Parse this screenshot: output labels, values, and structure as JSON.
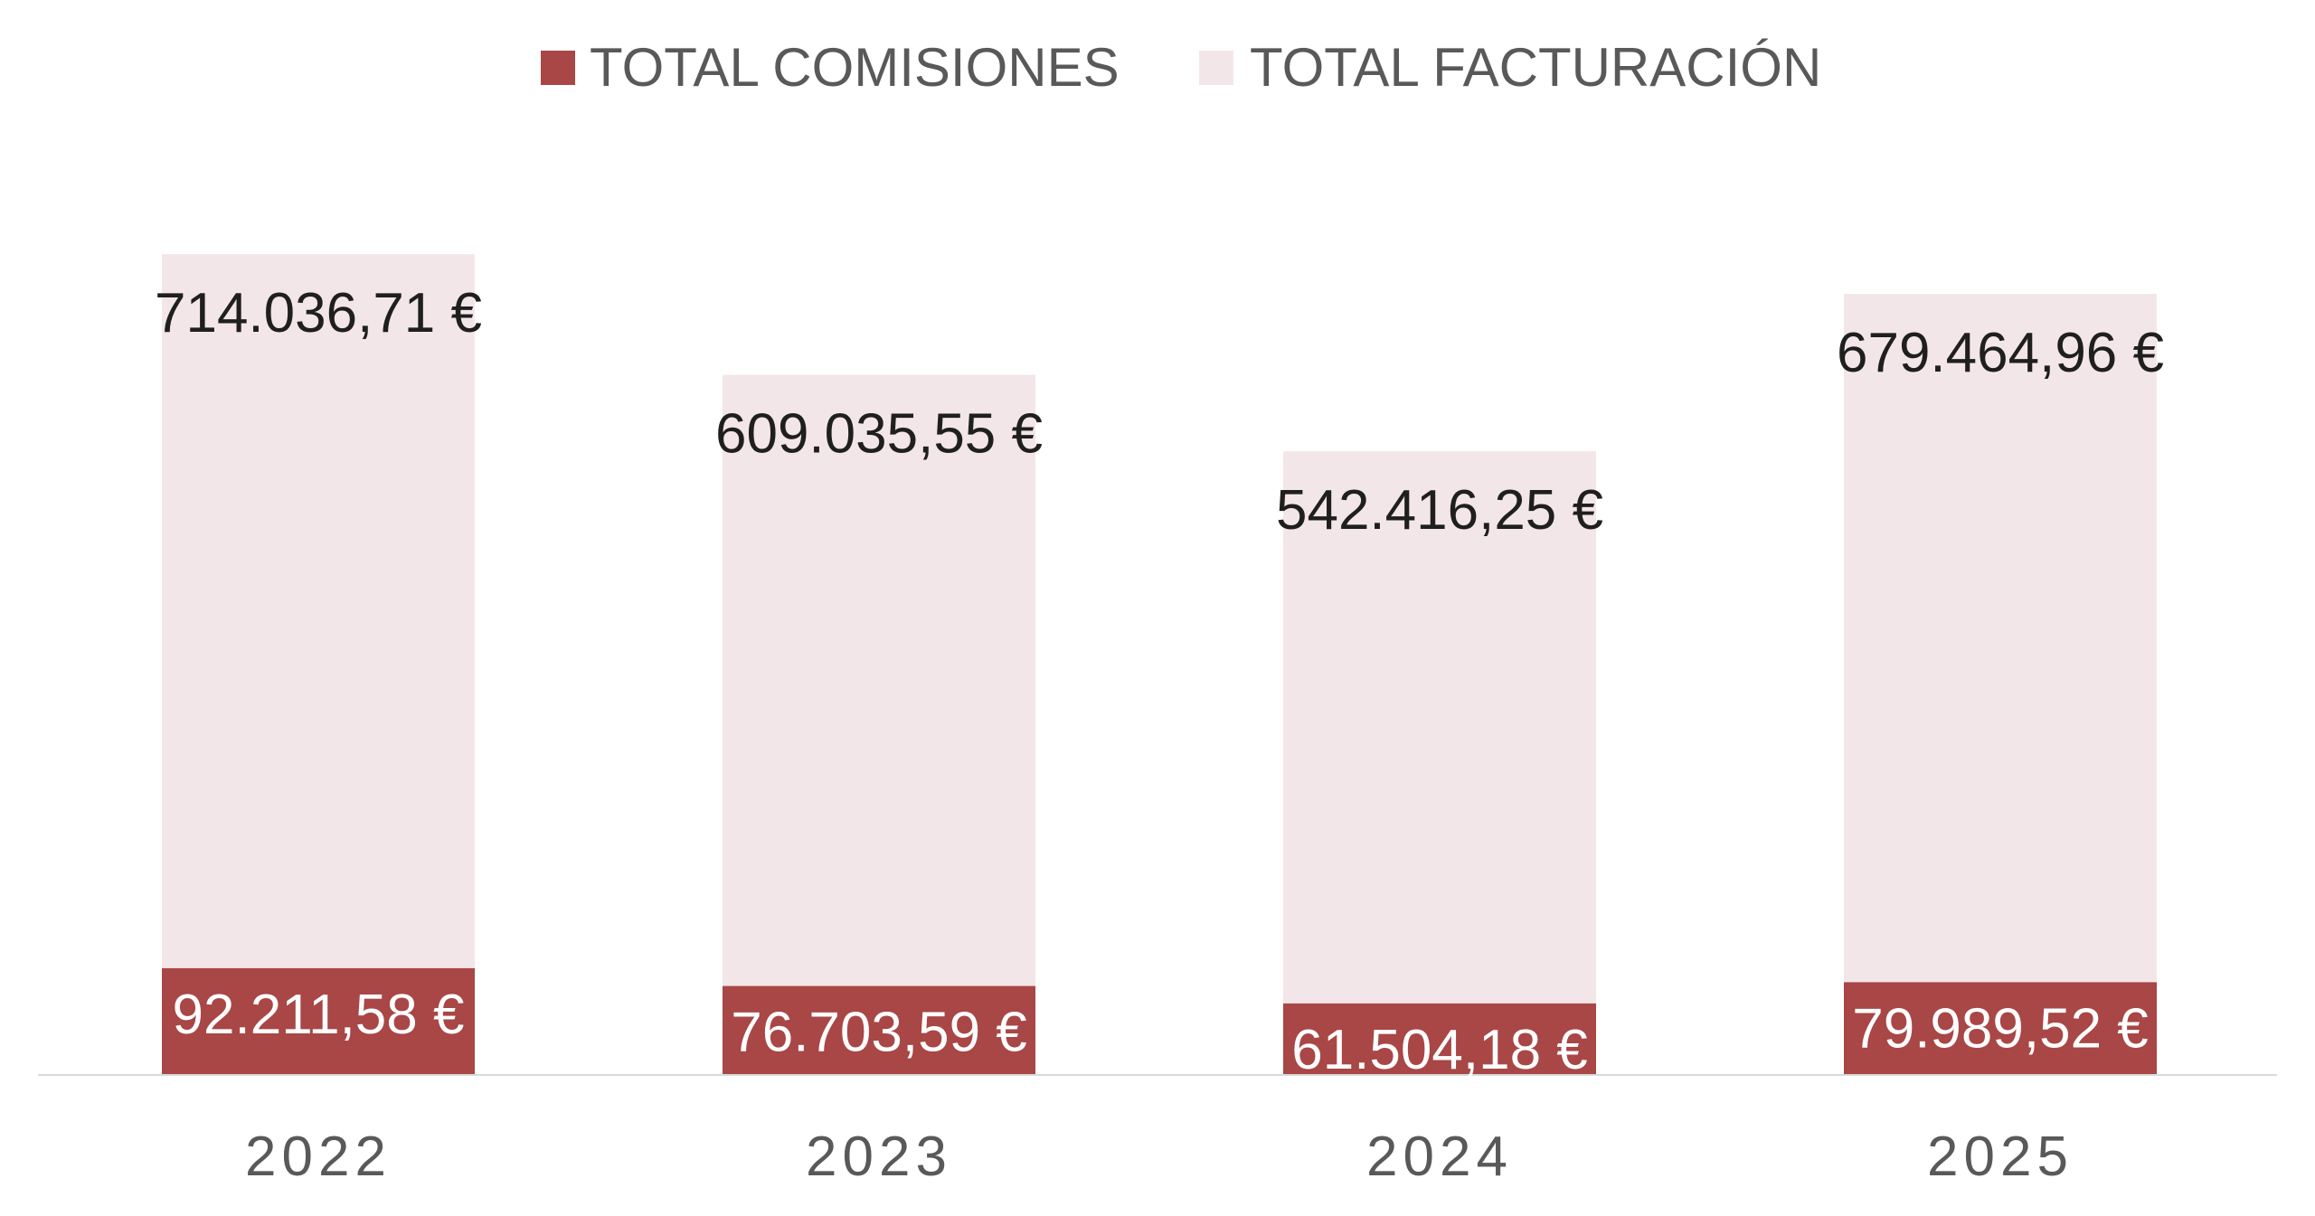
{
  "chart_data": {
    "type": "bar",
    "stacking": "overlapped",
    "categories": [
      "2022",
      "2023",
      "2024",
      "2025"
    ],
    "series": [
      {
        "name": "TOTAL COMISIONES",
        "color": "#A94646",
        "values": [
          92211.58,
          76703.59,
          61504.18,
          79989.52
        ],
        "labels": [
          "92.211,58 €",
          "76.703,59 €",
          "61.504,18 €",
          "79.989,52 €"
        ]
      },
      {
        "name": "TOTAL FACTURACIÓN",
        "color": "#F3E6E9",
        "values": [
          714036.71,
          609035.55,
          542416.25,
          679464.96
        ],
        "labels": [
          "714.036,71 €",
          "609.035,55 €",
          "542.416,25 €",
          "679.464,96 €"
        ]
      }
    ],
    "legend_position": "top",
    "grid": false,
    "axis_color": "#D9D9D9",
    "title": "",
    "xlabel": "",
    "ylabel": ""
  }
}
